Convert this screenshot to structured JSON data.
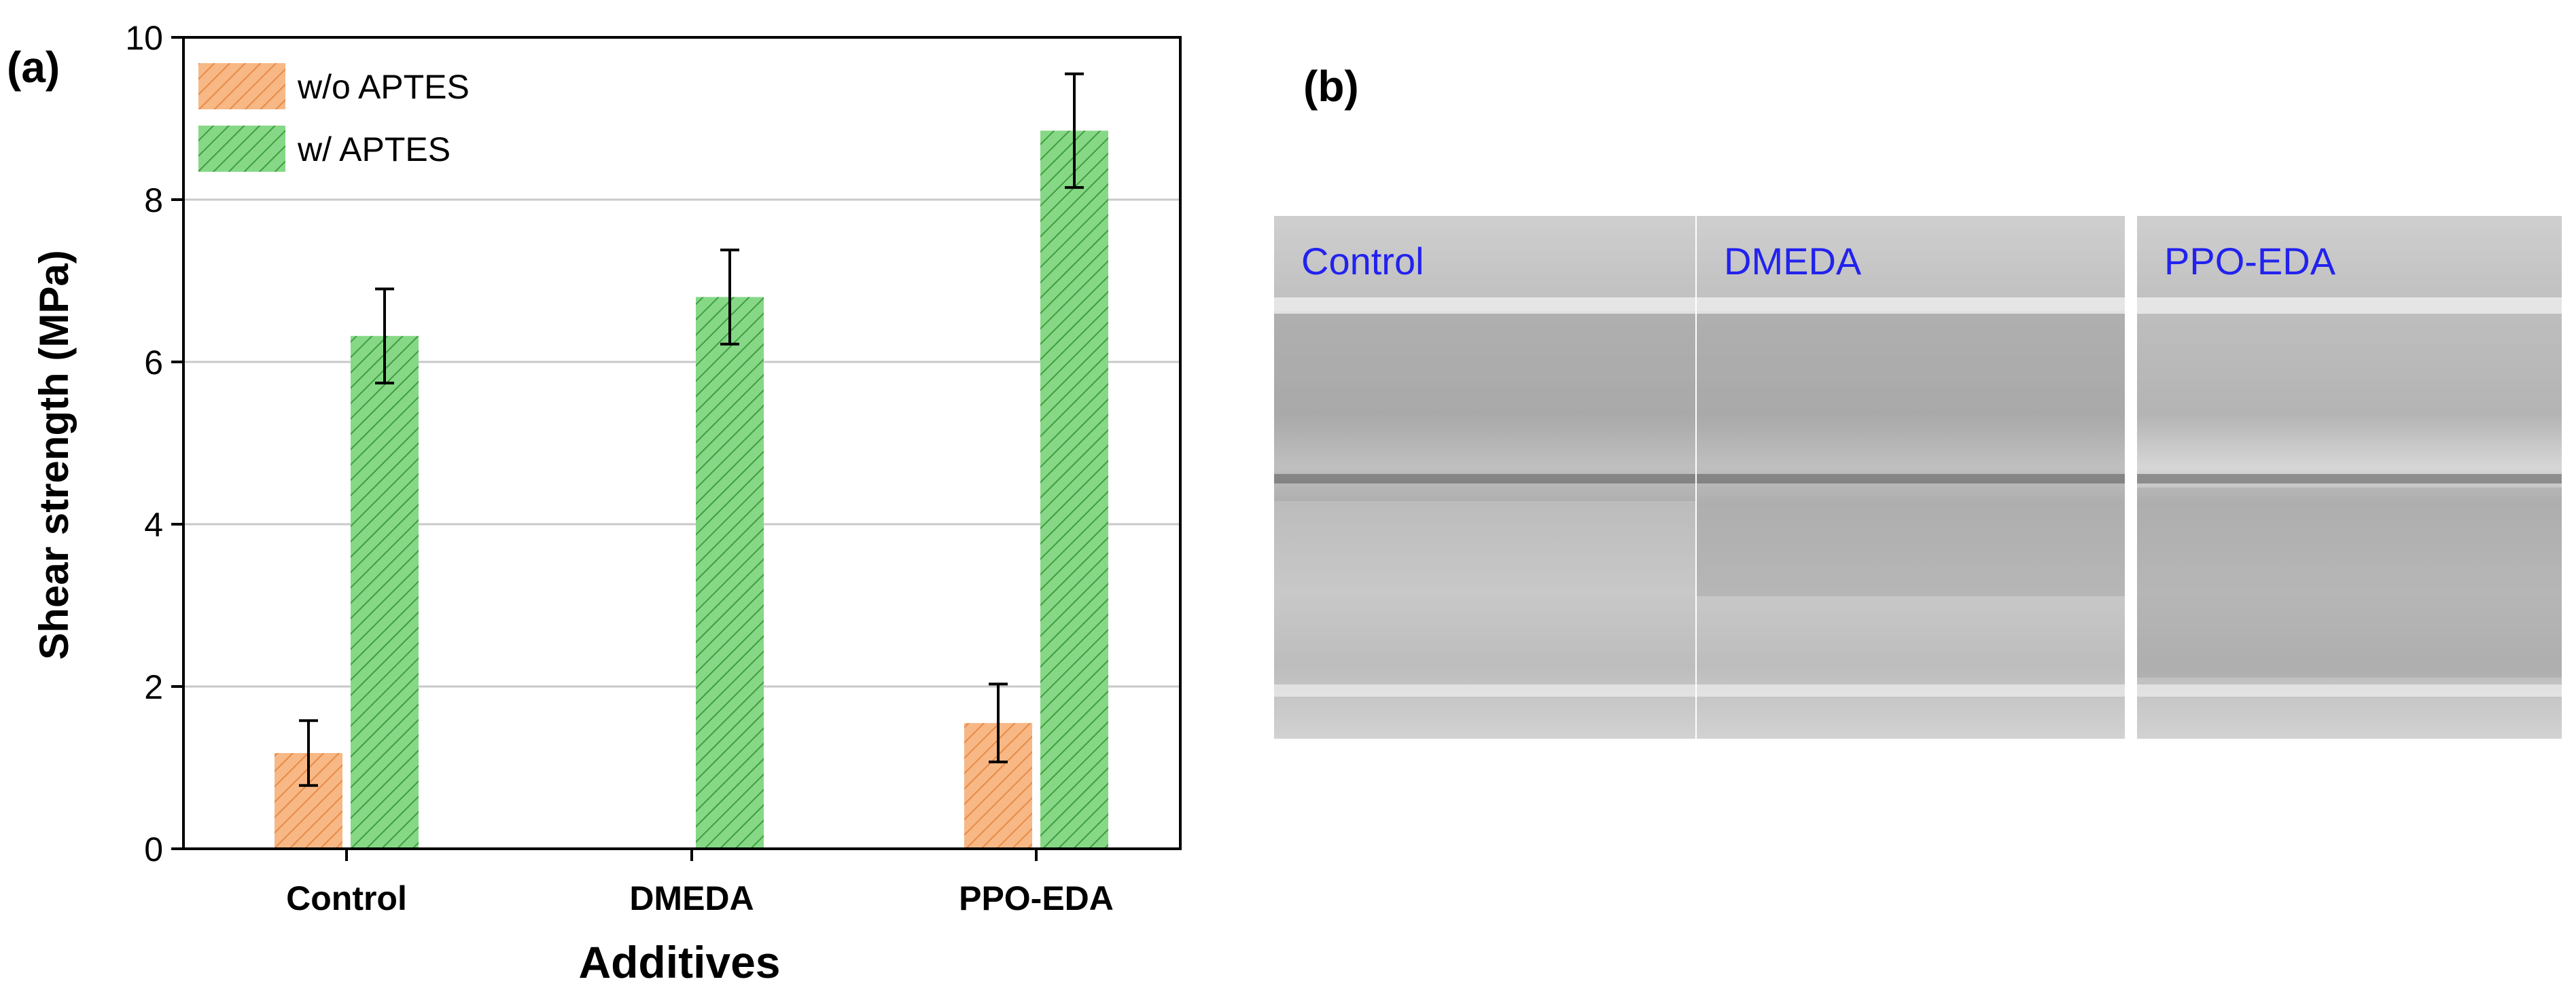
{
  "panels": {
    "a_label": "(a)",
    "b_label": "(b)"
  },
  "chart_data": {
    "type": "bar",
    "categories": [
      "Control",
      "DMEDA",
      "PPO-EDA"
    ],
    "series": [
      {
        "name": "w/o APTES",
        "values": [
          1.18,
          null,
          1.55
        ],
        "errors": [
          0.4,
          null,
          0.48
        ],
        "color": "#f5b07a",
        "hatch_color": "#e8894a"
      },
      {
        "name": "w/ APTES",
        "values": [
          6.32,
          6.8,
          8.85
        ],
        "errors": [
          0.58,
          0.58,
          0.7
        ],
        "color": "#7fd47f",
        "hatch_color": "#3c9a3c"
      }
    ],
    "xlabel": "Additives",
    "ylabel": "Shear strength (MPa)",
    "ylim": [
      0,
      10
    ],
    "yticks": [
      "0",
      "2",
      "4",
      "6",
      "8",
      "10"
    ],
    "grid": true,
    "legend_position": "top-left"
  },
  "photo": {
    "labels": [
      "Control",
      "DMEDA",
      "PPO-EDA"
    ],
    "label_color": "#2222ee"
  }
}
